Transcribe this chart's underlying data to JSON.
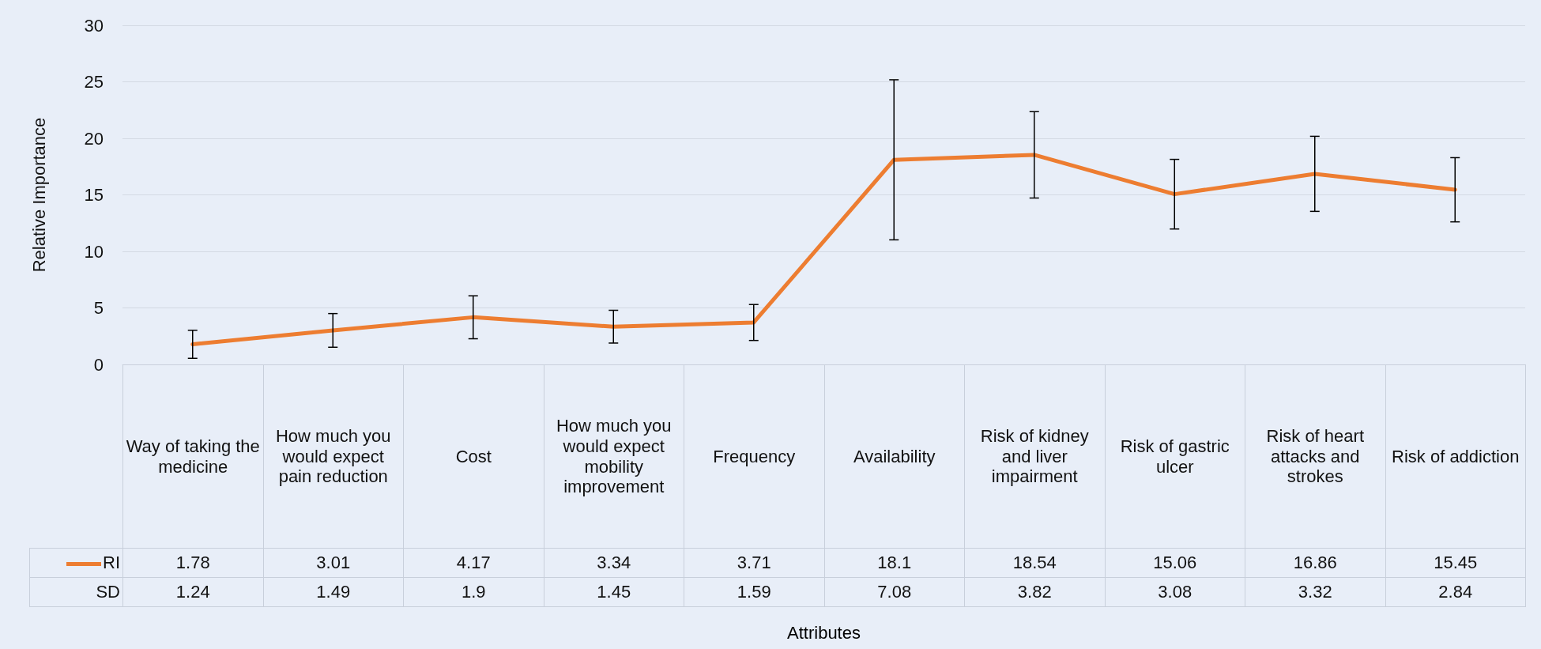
{
  "chart_data": {
    "type": "line",
    "ylabel": "Relative Importance",
    "categories": [
      "Way of taking the medicine",
      "How much you would expect pain reduction",
      "Cost",
      "How much you would expect mobility improvement",
      "Frequency",
      "Availability",
      "Risk of kidney and liver impairment",
      "Risk of gastric ulcer",
      "Risk of heart attacks and strokes",
      "Risk of addiction"
    ],
    "series": [
      {
        "name": "RI",
        "color": "#ed7d31",
        "values": [
          1.78,
          3.01,
          4.17,
          3.34,
          3.71,
          18.1,
          18.54,
          15.06,
          16.86,
          15.45
        ],
        "errors": [
          1.24,
          1.49,
          1.9,
          1.45,
          1.59,
          7.08,
          3.82,
          3.08,
          3.32,
          2.84
        ]
      }
    ],
    "annotations": [
      "SD",
      "1.24",
      "1.49",
      "1.9",
      "1.45",
      "1.59",
      "7.08",
      "3.82",
      "3.08",
      "3.32",
      "2.84",
      "Attributes"
    ],
    "ylim": [
      0,
      30
    ],
    "yticks": [
      0,
      5,
      10,
      15,
      20,
      25,
      30
    ],
    "grid": "y",
    "legend": "bottom left",
    "marker": "none",
    "line_style": "solid",
    "data_labels": true
  }
}
